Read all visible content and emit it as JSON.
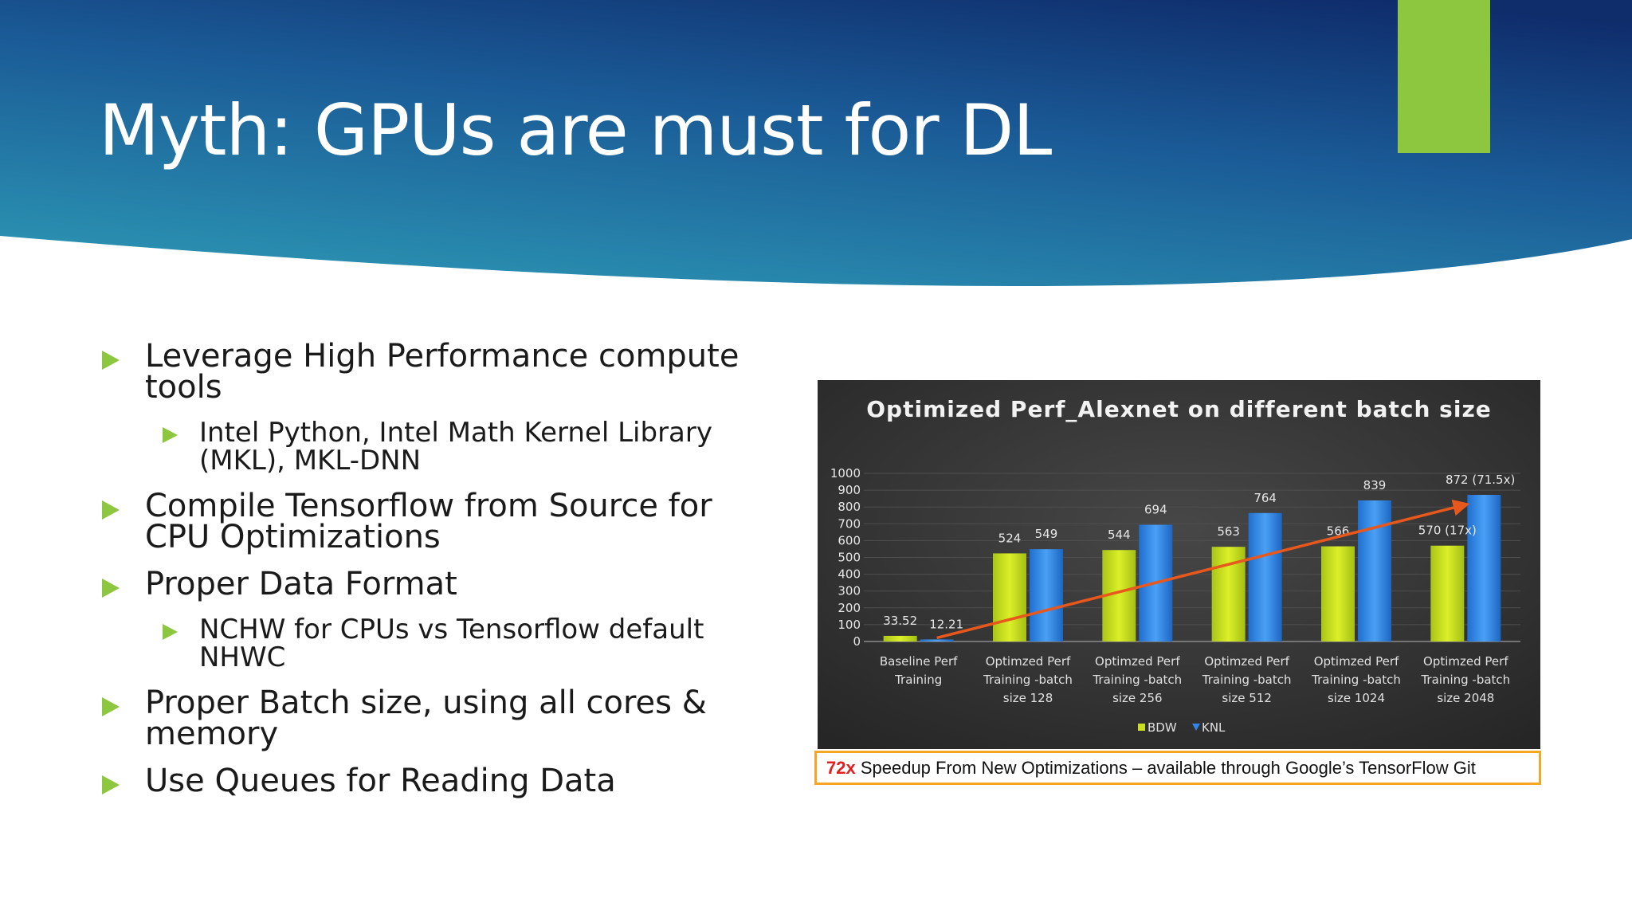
{
  "slide": {
    "title": "Myth: GPUs are must for DL",
    "accent_color": "#8dc63f",
    "header_colors": [
      "#2a8fb0",
      "#0f2c6b"
    ]
  },
  "bullets": [
    {
      "level": 1,
      "text": "Leverage High Performance compute tools"
    },
    {
      "level": 2,
      "text": "Intel Python, Intel Math Kernel Library (MKL), MKL-DNN"
    },
    {
      "level": 1,
      "text": "Compile Tensorflow from Source for CPU Optimizations"
    },
    {
      "level": 1,
      "text": "Proper Data Format"
    },
    {
      "level": 2,
      "text": "NCHW for CPUs vs Tensorflow default NHWC"
    },
    {
      "level": 1,
      "text": "Proper Batch size, using all cores & memory"
    },
    {
      "level": 1,
      "text": "Use Queues for Reading Data"
    }
  ],
  "chart_data": {
    "type": "bar",
    "title": "Optimized  Perf_Alexnet  on different  batch size",
    "categories": [
      [
        "Baseline Perf",
        "Training"
      ],
      [
        "Optimzed Perf",
        "Training -batch",
        "size 128"
      ],
      [
        "Optimzed Perf",
        "Training -batch",
        "size 256"
      ],
      [
        "Optimzed Perf",
        "Training -batch",
        "size 512"
      ],
      [
        "Optimzed Perf",
        "Training -batch",
        "size 1024"
      ],
      [
        "Optimzed Perf",
        "Training -batch",
        "size 2048"
      ]
    ],
    "series": [
      {
        "name": "BDW",
        "color": "#c8e020",
        "values": [
          33.52,
          524,
          544,
          563,
          566,
          570
        ],
        "labels": [
          "33.52",
          "524",
          "544",
          "563",
          "566",
          "570 (17x)"
        ]
      },
      {
        "name": "KNL",
        "color": "#2f86e8",
        "values": [
          12.21,
          549,
          694,
          764,
          839,
          872
        ],
        "labels": [
          "12.21",
          "549",
          "694",
          "764",
          "839",
          "872 (71.5x)"
        ]
      }
    ],
    "ylim": [
      0,
      1000
    ],
    "yticks": [
      0,
      100,
      200,
      300,
      400,
      500,
      600,
      700,
      800,
      900,
      1000
    ],
    "legend": "bottom",
    "grid": true,
    "trend_arrow": {
      "color": "#e8581c"
    }
  },
  "caption": {
    "emphasis": "72x",
    "text": " Speedup From New Optimizations – available  through Google’s TensorFlow Git",
    "border_color": "#f5a623"
  }
}
